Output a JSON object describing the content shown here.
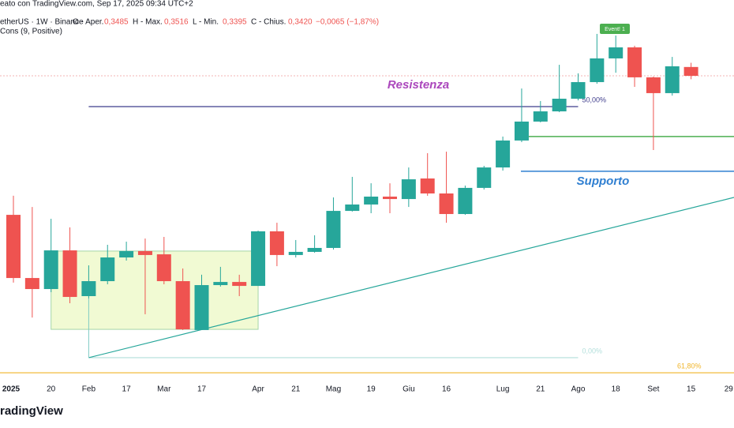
{
  "header": {
    "credit": "eato con TradingView.com, Sep 17, 2025 09:34 UTC+2",
    "symbol": "etherUS · 1W · Binance",
    "o_label": "O - Aper.",
    "o": "0,3485",
    "h_label": "H - Max.",
    "h": "0,3516",
    "l_label": "L - Min.",
    "l": "0,3395",
    "c_label": "C - Chius.",
    "c": "0,3420",
    "change": "−0,0065 (−1,87%)",
    "indicator": "Cons (9, Positive)"
  },
  "brand": "radingView",
  "chart_data": {
    "type": "candlestick",
    "categories": [
      "2025",
      null,
      "20",
      null,
      "Feb",
      null,
      "17",
      null,
      "Mar",
      null,
      "17",
      null,
      null,
      "Apr",
      null,
      "21",
      null,
      "Mag",
      null,
      "19",
      null,
      "Giu",
      null,
      "16",
      null,
      null,
      "Lug",
      null,
      "21",
      null,
      "Ago",
      null,
      "18",
      null,
      "Set",
      null,
      "15",
      null,
      "29"
    ],
    "open": [
      0.2399,
      0.1935,
      0.1854,
      0.2138,
      0.1802,
      0.1912,
      0.2086,
      0.2133,
      0.2109,
      0.1912,
      0.1553,
      0.1883,
      0.1906,
      0.1877,
      0.2278,
      0.2104,
      0.2127,
      0.2156,
      0.2428,
      0.2475,
      0.2533,
      0.2515,
      0.2666,
      0.2556,
      0.2405,
      0.2597,
      0.2747,
      0.2945,
      0.3084,
      0.3159,
      0.3252,
      0.3374,
      0.3548,
      0.3629,
      0.3409,
      0.3293,
      0.3485,
      null,
      null
    ],
    "high": [
      0.2539,
      0.2457,
      0.237,
      0.2307,
      0.2028,
      0.2179,
      0.2202,
      0.2225,
      0.2237,
      0.2005,
      0.1959,
      0.2017,
      0.1959,
      0.2283,
      0.2341,
      0.2214,
      0.2249,
      0.2527,
      0.2678,
      0.2631,
      0.2631,
      0.2747,
      0.2852,
      0.2863,
      0.2614,
      0.2759,
      0.2974,
      0.3327,
      0.3235,
      0.3501,
      0.3438,
      0.3728,
      0.3716,
      0.3641,
      0.3415,
      0.3559,
      0.3516,
      null,
      null
    ],
    "low": [
      0.1901,
      0.1645,
      0.1831,
      0.175,
      0.1785,
      0.1889,
      0.2063,
      0.1669,
      0.1889,
      0.1553,
      0.1553,
      0.1872,
      0.1802,
      0.1877,
      0.2022,
      0.2086,
      0.2121,
      0.2144,
      0.2423,
      0.2411,
      0.2411,
      0.2457,
      0.2539,
      0.2341,
      0.2399,
      0.2585,
      0.2724,
      0.2933,
      0.3078,
      0.3153,
      0.324,
      0.3362,
      0.3443,
      0.3339,
      0.2875,
      0.3275,
      0.3395,
      null,
      null
    ],
    "close": [
      0.1935,
      0.1854,
      0.2138,
      0.1796,
      0.1912,
      0.2086,
      0.2133,
      0.2104,
      0.1912,
      0.1558,
      0.1883,
      0.1906,
      0.1877,
      0.2278,
      0.2104,
      0.2127,
      0.2156,
      0.2428,
      0.2475,
      0.2533,
      0.2515,
      0.266,
      0.2556,
      0.2405,
      0.2597,
      0.2747,
      0.2945,
      0.3084,
      0.3159,
      0.3252,
      0.3374,
      0.3548,
      0.3629,
      0.3409,
      0.3293,
      0.349,
      0.342,
      null,
      null
    ],
    "ylim": [
      0.1193,
      0.3977
    ],
    "up_color": "#26a69a",
    "down_color": "#ef5350",
    "current_price": 0.342,
    "fib_levels": [
      {
        "value": 0.3194,
        "label": "50,00%",
        "color": "#3f3d8c"
      },
      {
        "value": 0.135,
        "label": "0,00%",
        "color": "#b2dfdb"
      },
      {
        "value": 0.1239,
        "label": "61,80%",
        "color": "#f0b429"
      }
    ],
    "support_levels": [
      {
        "value": 0.2974,
        "color": "#4caf50"
      },
      {
        "value": 0.2719,
        "color": "#2f7fd1"
      }
    ],
    "box": {
      "top": 0.2133,
      "bottom": 0.1558
    },
    "trendline": [
      0.135,
      0.2527
    ],
    "annotations": {
      "resistance": "Resistenza",
      "support": "Supporto",
      "event": "Event! 1"
    }
  }
}
